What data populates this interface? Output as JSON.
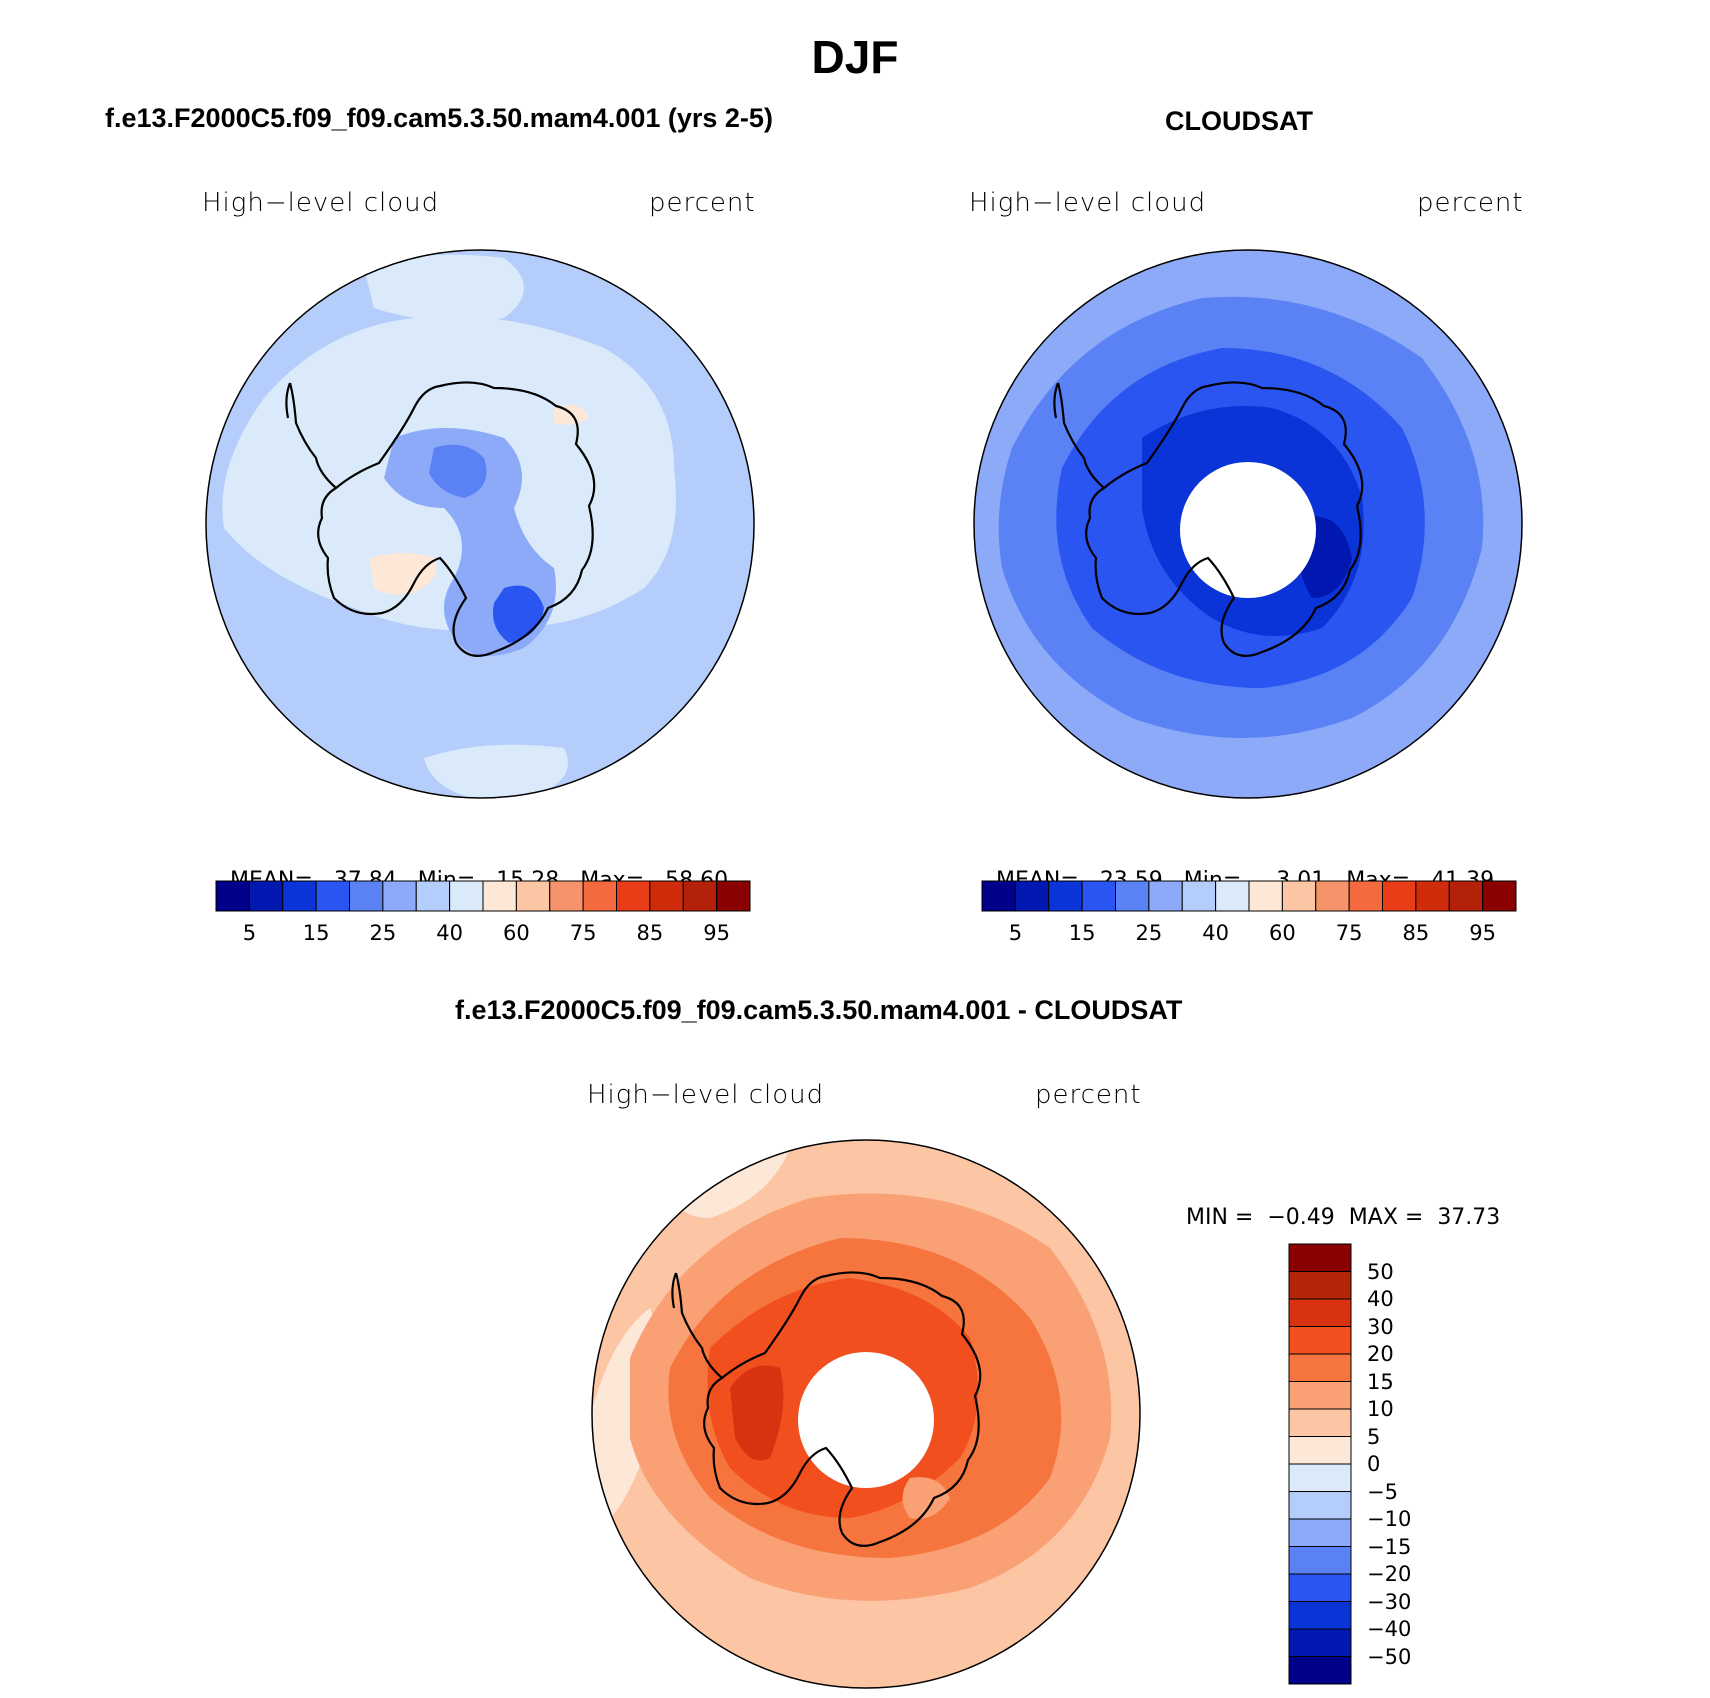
{
  "page": {
    "title": "DJF"
  },
  "panels": [
    {
      "id": "model",
      "title": "f.e13.F2000C5.f09_f09.cam5.3.50.mam4.001 (yrs 2-5)",
      "variable": "High−level cloud",
      "units": "percent",
      "stats": {
        "mean_label": "MEAN=",
        "mean": "37.84",
        "min_label": "Min=",
        "min": "15.28",
        "max_label": "Max=",
        "max": "58.60"
      }
    },
    {
      "id": "obs",
      "title": "CLOUDSAT",
      "variable": "High−level cloud",
      "units": "percent",
      "stats": {
        "mean_label": "MEAN=",
        "mean": "23.59",
        "min_label": "Min=",
        "min": "3.01",
        "max_label": "Max=",
        "max": "41.39"
      }
    },
    {
      "id": "diff",
      "title": "f.e13.F2000C5.f09_f09.cam5.3.50.mam4.001 - CLOUDSAT",
      "variable": "High−level cloud",
      "units": "percent",
      "stats": {
        "min_label": "MIN =",
        "min": "−0.49",
        "max_label": "MAX =",
        "max": "37.73"
      }
    }
  ],
  "colorbar_abs": {
    "colors": [
      "#00008b",
      "#0018b0",
      "#0a33d8",
      "#2a55f0",
      "#5a82f5",
      "#8caaf8",
      "#b5cdfb",
      "#daeafa",
      "#fde8d8",
      "#fcc6a5",
      "#f7936a",
      "#f26a3e",
      "#e83d17",
      "#d02c0c",
      "#b22108",
      "#8b0000"
    ],
    "labels": [
      "5",
      "15",
      "25",
      "40",
      "60",
      "75",
      "85",
      "95"
    ]
  },
  "colorbar_diff": {
    "colors_top_to_bottom": [
      "#8b0000",
      "#b52508",
      "#d83210",
      "#f24f1e",
      "#f6753f",
      "#f9a074",
      "#fcc6a5",
      "#fde8d8",
      "#daeafa",
      "#b5cdfb",
      "#8caaf8",
      "#5a82f5",
      "#2a55f0",
      "#0a33d8",
      "#0018b0",
      "#00008b"
    ],
    "labels_top_to_bottom": [
      "50",
      "40",
      "30",
      "20",
      "15",
      "10",
      "5",
      "0",
      "−5",
      "−10",
      "−15",
      "−20",
      "−30",
      "−40",
      "−50"
    ]
  },
  "map_colors": {
    "model_base": "#b5cdfb",
    "model_light": "#daeafa",
    "model_mid": "#8caaf8",
    "model_deep": "#5a82f5",
    "model_dark": "#2a55f0",
    "model_peach": "#fde8d8",
    "obs_base": "#8caaf8",
    "obs_mid": "#5a82f5",
    "obs_dark": "#2a55f0",
    "obs_darker": "#0a33d8",
    "obs_darkest": "#0018b0",
    "diff_base": "#fcc6a5",
    "diff_pale": "#fde8d8",
    "diff_mid": "#f9a074",
    "diff_orange": "#f6753f",
    "diff_red": "#f24f1e",
    "diff_deep": "#d83210"
  }
}
